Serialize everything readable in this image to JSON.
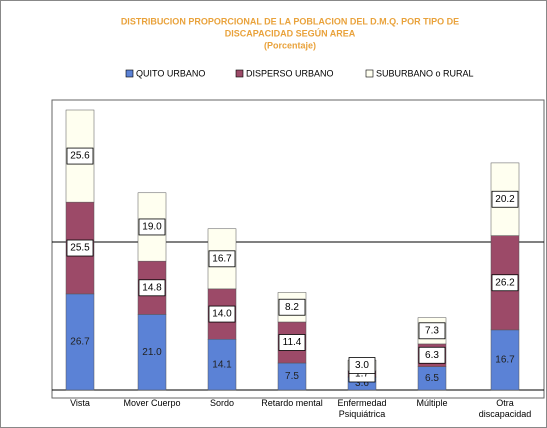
{
  "chart_data": {
    "type": "bar",
    "stacked": true,
    "title": [
      "DISTRIBUCION PROPORCIONAL DE LA POBLACION DEL D.M.Q. POR TIPO DE",
      "DISCAPACIDAD SEGÚN AREA",
      "(Porcentaje)"
    ],
    "categories": [
      "Vista",
      "Mover Cuerpo",
      "Sordo",
      "Retardo mental",
      "Enfermedad Psiquiátrica",
      "Múltiple",
      "Otra discapacidad"
    ],
    "series": [
      {
        "name": "QUITO URBANO",
        "color": "#5b82d6",
        "values": [
          26.7,
          21.0,
          14.1,
          7.5,
          3.6,
          6.5,
          16.7
        ],
        "value_labels": [
          "26.7",
          "21.0",
          "14.1",
          "7.5",
          "3.6",
          "6.5",
          "16.7"
        ]
      },
      {
        "name": "DISPERSO URBANO",
        "color": "#9c4a68",
        "values": [
          25.5,
          14.8,
          14.0,
          11.4,
          1.7,
          6.3,
          26.2
        ],
        "value_labels": [
          "25.5",
          "14.8",
          "14.0",
          "11.4",
          "1.7",
          "6.3",
          "26.2"
        ]
      },
      {
        "name": "SUBURBANO o RURAL",
        "color": "#fffff0",
        "values": [
          25.6,
          19.0,
          16.7,
          8.2,
          3.0,
          7.3,
          20.2
        ],
        "value_labels": [
          "25.6",
          "19.0",
          "16.7",
          "8.2",
          "3.0",
          "7.3",
          "20.2"
        ]
      }
    ]
  }
}
